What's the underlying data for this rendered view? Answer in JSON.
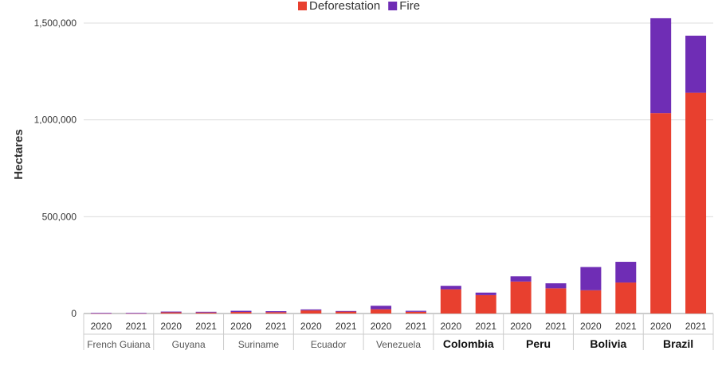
{
  "chart_data": {
    "type": "bar",
    "stacked": true,
    "ylabel": "Hectares",
    "ylim": [
      0,
      1500000
    ],
    "yticks": [
      0,
      500000,
      1000000,
      1500000
    ],
    "ytick_labels": [
      "0",
      "500,000",
      "1,000,000",
      "1,500,000"
    ],
    "grid": true,
    "legend_position": "top-center",
    "countries": [
      {
        "name": "French Guiana",
        "bold": false
      },
      {
        "name": "Guyana",
        "bold": false
      },
      {
        "name": "Suriname",
        "bold": false
      },
      {
        "name": "Ecuador",
        "bold": false
      },
      {
        "name": "Venezuela",
        "bold": false
      },
      {
        "name": "Colombia",
        "bold": true
      },
      {
        "name": "Peru",
        "bold": true
      },
      {
        "name": "Bolivia",
        "bold": true
      },
      {
        "name": "Brazil",
        "bold": true
      }
    ],
    "categories": [
      "2020",
      "2021",
      "2020",
      "2021",
      "2020",
      "2021",
      "2020",
      "2021",
      "2020",
      "2021",
      "2020",
      "2021",
      "2020",
      "2021",
      "2020",
      "2021",
      "2020",
      "2021"
    ],
    "series": [
      {
        "name": "Deforestation",
        "color": "#e8402f",
        "values": [
          2000,
          2000,
          6000,
          5000,
          8000,
          7000,
          16000,
          10000,
          22000,
          9000,
          125000,
          95000,
          165000,
          130000,
          120000,
          160000,
          1035000,
          1140000
        ]
      },
      {
        "name": "Fire",
        "color": "#6f2db5",
        "values": [
          1000,
          1000,
          4000,
          4000,
          6000,
          5000,
          5000,
          3000,
          18000,
          5000,
          18000,
          13000,
          27000,
          26000,
          120000,
          107000,
          490000,
          295000
        ]
      }
    ]
  }
}
